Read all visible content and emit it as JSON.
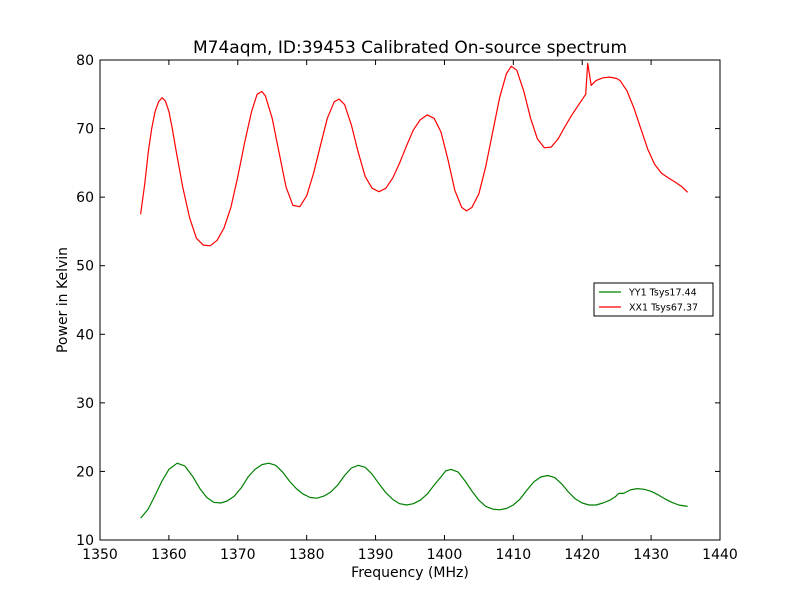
{
  "chart_data": {
    "type": "line",
    "title": "M74aqm, ID:39453 Calibrated On-source spectrum",
    "xlabel": "Frequency (MHz)",
    "ylabel": "Power in Kelvin",
    "xlim": [
      1350,
      1440
    ],
    "ylim": [
      10,
      80
    ],
    "xticks": [
      1350,
      1360,
      1370,
      1380,
      1390,
      1400,
      1410,
      1420,
      1430,
      1440
    ],
    "yticks": [
      10,
      20,
      30,
      40,
      50,
      60,
      70,
      80
    ],
    "grid": false,
    "legend_position": "center-right",
    "series": [
      {
        "name": "YY1 Tsys17.44",
        "color": "#008000",
        "points": [
          [
            1355.9,
            13.2
          ],
          [
            1357.0,
            14.5
          ],
          [
            1358.0,
            16.5
          ],
          [
            1359.0,
            18.6
          ],
          [
            1360.0,
            20.3
          ],
          [
            1361.2,
            21.2
          ],
          [
            1362.3,
            20.8
          ],
          [
            1363.5,
            19.2
          ],
          [
            1364.5,
            17.5
          ],
          [
            1365.5,
            16.2
          ],
          [
            1366.5,
            15.5
          ],
          [
            1367.5,
            15.4
          ],
          [
            1368.5,
            15.7
          ],
          [
            1369.5,
            16.4
          ],
          [
            1370.5,
            17.6
          ],
          [
            1371.5,
            19.2
          ],
          [
            1372.5,
            20.3
          ],
          [
            1373.5,
            21.0
          ],
          [
            1374.5,
            21.2
          ],
          [
            1375.5,
            20.9
          ],
          [
            1376.5,
            19.9
          ],
          [
            1377.5,
            18.6
          ],
          [
            1378.5,
            17.5
          ],
          [
            1379.5,
            16.7
          ],
          [
            1380.5,
            16.2
          ],
          [
            1381.5,
            16.1
          ],
          [
            1382.5,
            16.4
          ],
          [
            1383.5,
            17.0
          ],
          [
            1384.5,
            18.0
          ],
          [
            1385.5,
            19.4
          ],
          [
            1386.5,
            20.5
          ],
          [
            1387.5,
            20.9
          ],
          [
            1388.5,
            20.6
          ],
          [
            1389.5,
            19.6
          ],
          [
            1390.5,
            18.2
          ],
          [
            1391.5,
            16.9
          ],
          [
            1392.5,
            15.9
          ],
          [
            1393.5,
            15.3
          ],
          [
            1394.5,
            15.1
          ],
          [
            1395.5,
            15.3
          ],
          [
            1396.5,
            15.8
          ],
          [
            1397.5,
            16.7
          ],
          [
            1398.5,
            18.0
          ],
          [
            1399.5,
            19.2
          ],
          [
            1400.2,
            20.1
          ],
          [
            1401.0,
            20.3
          ],
          [
            1402.0,
            19.9
          ],
          [
            1403.0,
            18.6
          ],
          [
            1404.0,
            17.1
          ],
          [
            1405.0,
            15.8
          ],
          [
            1406.0,
            14.9
          ],
          [
            1407.0,
            14.5
          ],
          [
            1408.0,
            14.4
          ],
          [
            1409.0,
            14.6
          ],
          [
            1410.0,
            15.1
          ],
          [
            1411.0,
            16.0
          ],
          [
            1412.0,
            17.3
          ],
          [
            1413.0,
            18.5
          ],
          [
            1414.0,
            19.2
          ],
          [
            1415.0,
            19.4
          ],
          [
            1416.0,
            19.1
          ],
          [
            1417.0,
            18.2
          ],
          [
            1418.0,
            17.0
          ],
          [
            1419.0,
            16.0
          ],
          [
            1420.0,
            15.4
          ],
          [
            1421.0,
            15.1
          ],
          [
            1422.0,
            15.1
          ],
          [
            1423.0,
            15.4
          ],
          [
            1424.0,
            15.8
          ],
          [
            1424.8,
            16.3
          ],
          [
            1425.3,
            16.8
          ],
          [
            1426.0,
            16.8
          ],
          [
            1427.0,
            17.3
          ],
          [
            1428.0,
            17.5
          ],
          [
            1429.0,
            17.4
          ],
          [
            1430.0,
            17.1
          ],
          [
            1431.0,
            16.6
          ],
          [
            1432.0,
            16.0
          ],
          [
            1433.0,
            15.5
          ],
          [
            1434.0,
            15.1
          ],
          [
            1435.3,
            14.9
          ]
        ]
      },
      {
        "name": "XX1 Tsys67.37",
        "color": "#ff0000",
        "points": [
          [
            1355.9,
            57.5
          ],
          [
            1356.5,
            62.0
          ],
          [
            1357.0,
            66.5
          ],
          [
            1357.5,
            70.0
          ],
          [
            1358.0,
            72.5
          ],
          [
            1358.5,
            73.9
          ],
          [
            1359.0,
            74.5
          ],
          [
            1359.5,
            74.0
          ],
          [
            1360.0,
            72.5
          ],
          [
            1360.5,
            70.0
          ],
          [
            1361.0,
            67.0
          ],
          [
            1362.0,
            61.5
          ],
          [
            1363.0,
            57.0
          ],
          [
            1364.0,
            54.0
          ],
          [
            1365.0,
            53.0
          ],
          [
            1366.0,
            52.9
          ],
          [
            1367.0,
            53.7
          ],
          [
            1368.0,
            55.5
          ],
          [
            1369.0,
            58.5
          ],
          [
            1370.0,
            63.0
          ],
          [
            1371.0,
            68.0
          ],
          [
            1372.0,
            72.5
          ],
          [
            1372.8,
            75.0
          ],
          [
            1373.5,
            75.4
          ],
          [
            1374.0,
            74.8
          ],
          [
            1375.0,
            71.5
          ],
          [
            1376.0,
            66.5
          ],
          [
            1377.0,
            61.5
          ],
          [
            1378.0,
            58.8
          ],
          [
            1379.0,
            58.6
          ],
          [
            1380.0,
            60.2
          ],
          [
            1381.0,
            63.5
          ],
          [
            1382.0,
            67.5
          ],
          [
            1383.0,
            71.5
          ],
          [
            1384.0,
            73.9
          ],
          [
            1384.7,
            74.3
          ],
          [
            1385.5,
            73.5
          ],
          [
            1386.5,
            70.5
          ],
          [
            1387.5,
            66.5
          ],
          [
            1388.5,
            63.0
          ],
          [
            1389.5,
            61.3
          ],
          [
            1390.5,
            60.8
          ],
          [
            1391.5,
            61.3
          ],
          [
            1392.5,
            62.8
          ],
          [
            1393.5,
            65.0
          ],
          [
            1394.5,
            67.5
          ],
          [
            1395.5,
            69.8
          ],
          [
            1396.5,
            71.3
          ],
          [
            1397.5,
            72.0
          ],
          [
            1398.5,
            71.5
          ],
          [
            1399.5,
            69.5
          ],
          [
            1400.5,
            65.5
          ],
          [
            1401.5,
            61.0
          ],
          [
            1402.5,
            58.5
          ],
          [
            1403.2,
            58.0
          ],
          [
            1404.0,
            58.5
          ],
          [
            1405.0,
            60.5
          ],
          [
            1406.0,
            64.5
          ],
          [
            1407.0,
            69.5
          ],
          [
            1408.0,
            74.5
          ],
          [
            1409.0,
            78.0
          ],
          [
            1409.7,
            79.1
          ],
          [
            1410.5,
            78.5
          ],
          [
            1411.5,
            75.5
          ],
          [
            1412.5,
            71.5
          ],
          [
            1413.5,
            68.5
          ],
          [
            1414.5,
            67.2
          ],
          [
            1415.5,
            67.3
          ],
          [
            1416.5,
            68.5
          ],
          [
            1417.5,
            70.3
          ],
          [
            1418.5,
            72.0
          ],
          [
            1419.5,
            73.5
          ],
          [
            1420.5,
            75.0
          ],
          [
            1420.8,
            79.5
          ],
          [
            1421.3,
            76.3
          ],
          [
            1422.0,
            77.0
          ],
          [
            1423.0,
            77.4
          ],
          [
            1424.0,
            77.5
          ],
          [
            1425.0,
            77.3
          ],
          [
            1425.5,
            77.0
          ],
          [
            1426.5,
            75.5
          ],
          [
            1427.5,
            73.0
          ],
          [
            1428.5,
            70.0
          ],
          [
            1429.5,
            67.0
          ],
          [
            1430.5,
            64.8
          ],
          [
            1431.5,
            63.5
          ],
          [
            1432.5,
            62.8
          ],
          [
            1433.5,
            62.2
          ],
          [
            1434.5,
            61.5
          ],
          [
            1435.3,
            60.7
          ]
        ]
      }
    ]
  }
}
